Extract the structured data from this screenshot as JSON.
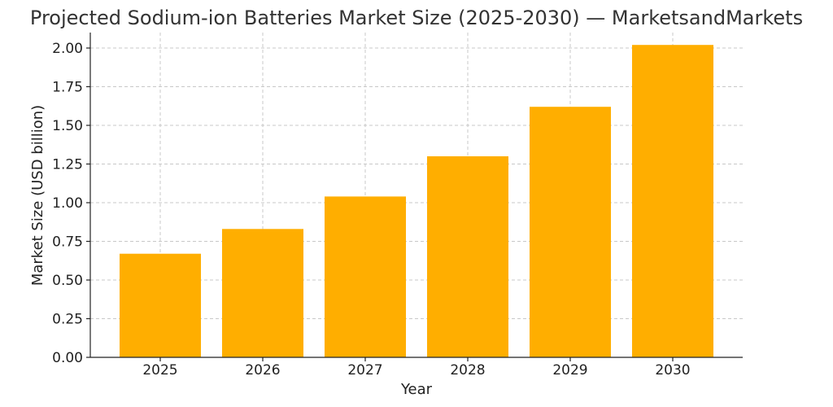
{
  "chart_data": {
    "type": "bar",
    "title": "Projected Sodium-ion Batteries Market Size (2025-2030) — MarketsandMarkets",
    "xlabel": "Year",
    "ylabel": "Market Size (USD billion)",
    "categories": [
      "2025",
      "2026",
      "2027",
      "2028",
      "2029",
      "2030"
    ],
    "values": [
      0.67,
      0.83,
      1.04,
      1.3,
      1.62,
      2.02
    ],
    "ylim": [
      0,
      2.1
    ],
    "yticks": [
      0.0,
      0.25,
      0.5,
      0.75,
      1.0,
      1.25,
      1.5,
      1.75,
      2.0
    ],
    "ytick_labels": [
      "0.00",
      "0.25",
      "0.50",
      "0.75",
      "1.00",
      "1.25",
      "1.50",
      "1.75",
      "2.00"
    ],
    "grid": true,
    "bar_color": "#FFAE00"
  }
}
